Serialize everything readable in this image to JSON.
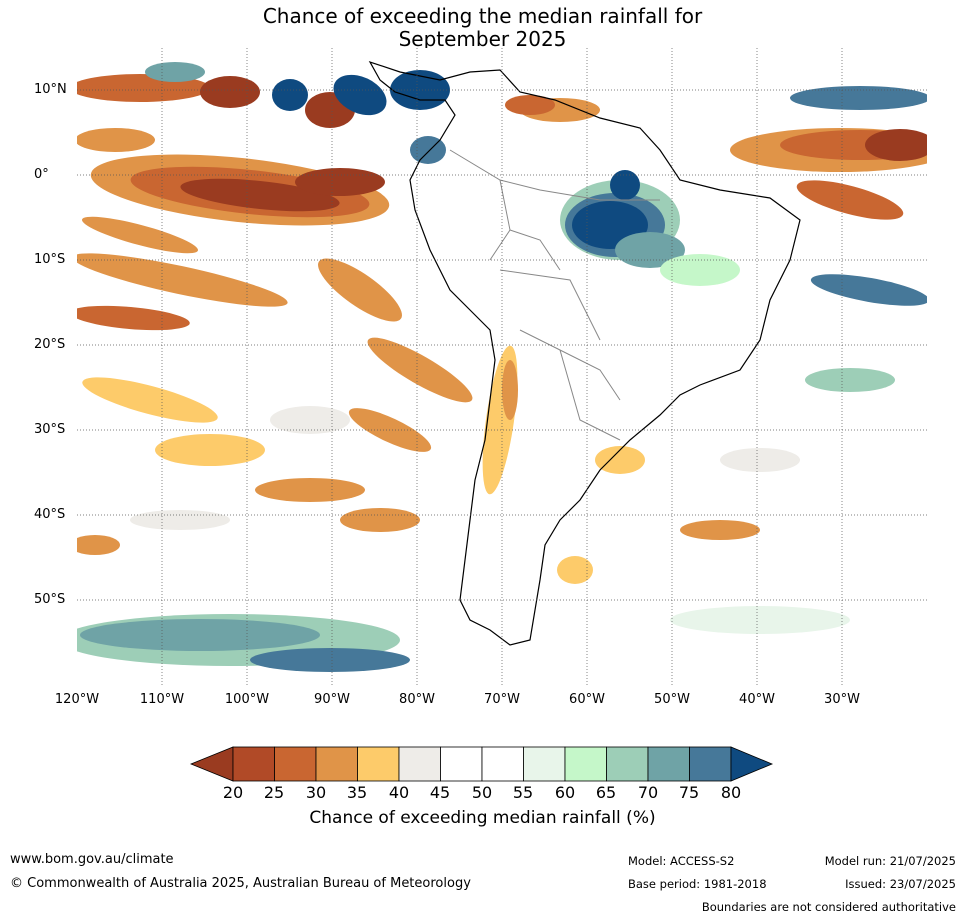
{
  "title": {
    "line1": "Chance of exceeding the median rainfall for",
    "line2": "September 2025"
  },
  "axes": {
    "lat_labels": [
      "10°N",
      "0°",
      "10°S",
      "20°S",
      "30°S",
      "40°S",
      "50°S"
    ],
    "lon_labels": [
      "120°W",
      "110°W",
      "100°W",
      "90°W",
      "80°W",
      "70°W",
      "60°W",
      "50°W",
      "40°W",
      "30°W"
    ],
    "lat_range": [
      -60,
      15
    ],
    "lon_range": [
      -120,
      -20
    ],
    "grid": "dotted"
  },
  "colorbar": {
    "title": "Chance of exceeding median rainfall (%)",
    "ticks": [
      "20",
      "25",
      "30",
      "35",
      "40",
      "45",
      "50",
      "55",
      "60",
      "65",
      "70",
      "75",
      "80"
    ],
    "colors": [
      "#9a3b20",
      "#b14a27",
      "#c96631",
      "#e09448",
      "#fdcb6a",
      "#eeece8",
      "#ffffff",
      "#ffffff",
      "#e8f5ea",
      "#c5f7c9",
      "#9dceb7",
      "#6fa3a6",
      "#467899",
      "#0f4a80"
    ]
  },
  "footer": {
    "website": "www.bom.gov.au/climate",
    "copyright": "© Commonwealth of Australia 2025, Australian Bureau of Meteorology",
    "model": "Model: ACCESS-S2",
    "base_period": "Base period: 1981-2018",
    "model_run": "Model run: 21/07/2025",
    "issued": "Issued: 23/07/2025",
    "disclaimer": "Boundaries are not considered authoritative"
  }
}
